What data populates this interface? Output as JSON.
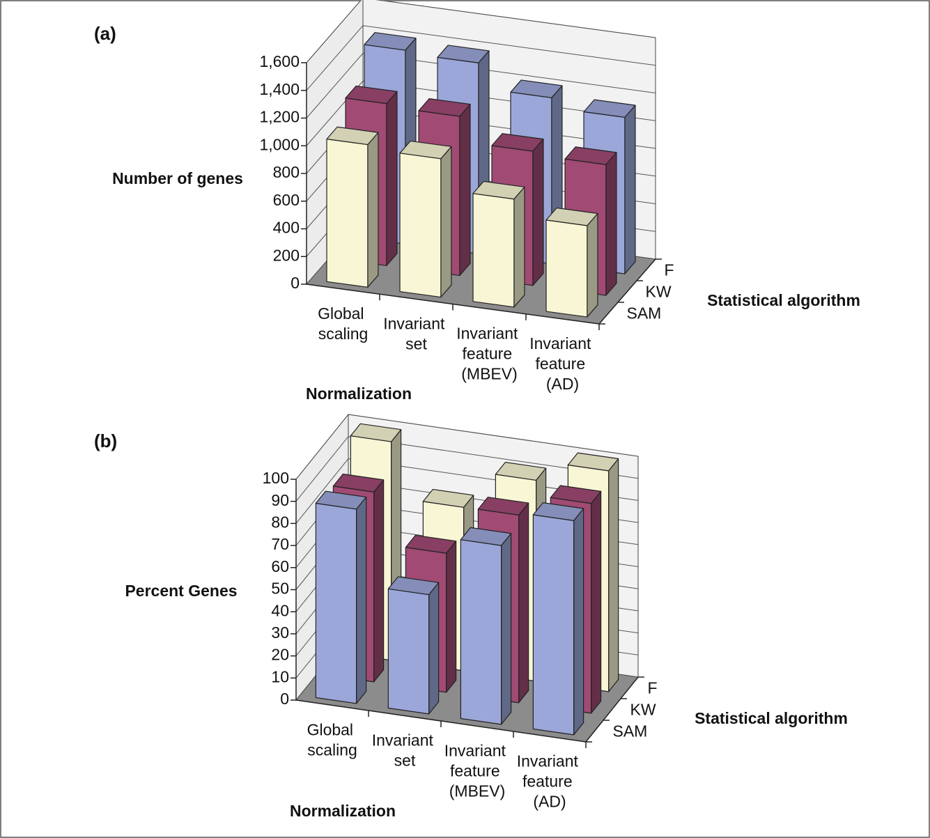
{
  "chart_data": [
    {
      "type": "bar3d",
      "title": "(a)",
      "y_label": "Number of genes",
      "x_label": "Normalization",
      "z_label": "Statistical algorithm",
      "categories": [
        "Global scaling",
        "Invariant set",
        "Invariant feature (MBEV)",
        "Invariant feature (AD)"
      ],
      "series": [
        {
          "name": "SAM",
          "color": "#f8f6d4",
          "values": [
            1030,
            1000,
            780,
            660
          ]
        },
        {
          "name": "KW",
          "color": "#a04a74",
          "values": [
            1170,
            1150,
            970,
            945
          ]
        },
        {
          "name": "F",
          "color": "#9ba7d9",
          "values": [
            1400,
            1380,
            1200,
            1130
          ]
        }
      ],
      "ylim": [
        0,
        1600
      ],
      "yticks": [
        0,
        200,
        400,
        600,
        800,
        {
          "value": 1000,
          "label": "1,000"
        },
        {
          "value": 1200,
          "label": "1,200"
        },
        {
          "value": 1400,
          "label": "1,400"
        },
        {
          "value": 1600,
          "label": "1,600"
        }
      ]
    },
    {
      "type": "bar3d",
      "title": "(b)",
      "y_label": "Percent Genes",
      "x_label": "Normalization",
      "z_label": "Statistical algorithm",
      "categories": [
        "Global scaling",
        "Invariant set",
        "Invariant feature (MBEV)",
        "Invariant feature (AD)"
      ],
      "series": [
        {
          "name": "SAM",
          "color": "#9ba7d9",
          "values": [
            88,
            54,
            81,
            97
          ]
        },
        {
          "name": "KW",
          "color": "#a04a74",
          "values": [
            86,
            63,
            85,
            95
          ]
        },
        {
          "name": "F",
          "color": "#f8f6d4",
          "values": [
            99,
            74,
            91,
            100
          ]
        }
      ],
      "ylim": [
        0,
        100
      ],
      "yticks": [
        0,
        10,
        20,
        30,
        40,
        50,
        60,
        70,
        80,
        90,
        100
      ]
    }
  ]
}
